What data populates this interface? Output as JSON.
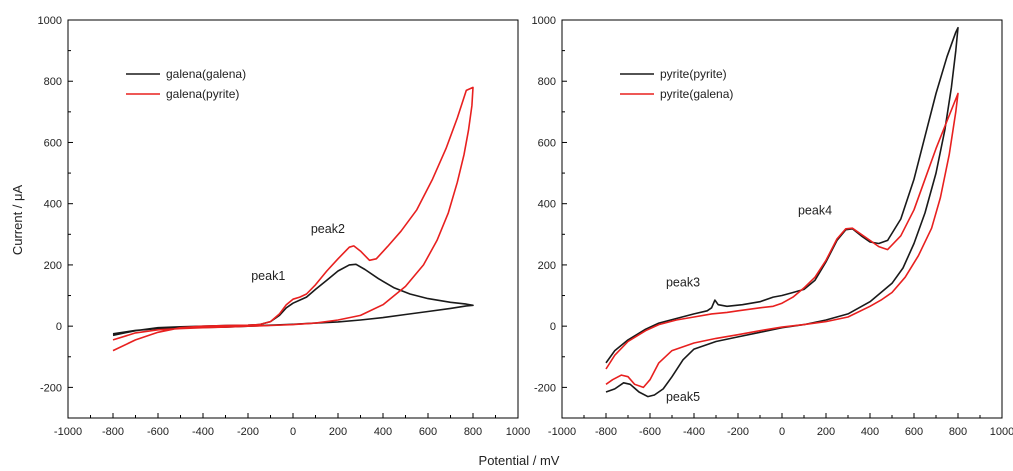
{
  "figure": {
    "shared_xlabel": "Potential / mV",
    "ylabel": "Current / μA"
  },
  "chart_data": [
    {
      "type": "line",
      "xlabel": "",
      "ylabel": "Current / μA",
      "xlim": [
        -1000,
        1000
      ],
      "ylim": [
        -300,
        1000
      ],
      "xticks": [
        -1000,
        -800,
        -600,
        -400,
        -200,
        0,
        200,
        400,
        600,
        800,
        1000
      ],
      "yticks": [
        -200,
        0,
        200,
        400,
        600,
        800,
        1000
      ],
      "grid": false,
      "legend_position": "upper-left",
      "series": [
        {
          "name": "galena(galena)",
          "color": "#1a1a1a",
          "points": [
            [
              -800,
              -30
            ],
            [
              -700,
              -15
            ],
            [
              -600,
              -5
            ],
            [
              -500,
              -2
            ],
            [
              -400,
              0
            ],
            [
              -300,
              2
            ],
            [
              -200,
              3
            ],
            [
              -150,
              5
            ],
            [
              -100,
              15
            ],
            [
              -60,
              35
            ],
            [
              -30,
              60
            ],
            [
              0,
              75
            ],
            [
              30,
              85
            ],
            [
              60,
              95
            ],
            [
              100,
              120
            ],
            [
              150,
              150
            ],
            [
              200,
              180
            ],
            [
              250,
              200
            ],
            [
              280,
              202
            ],
            [
              320,
              185
            ],
            [
              380,
              155
            ],
            [
              450,
              125
            ],
            [
              520,
              105
            ],
            [
              600,
              90
            ],
            [
              700,
              78
            ],
            [
              770,
              72
            ],
            [
              800,
              68
            ],
            [
              770,
              66
            ],
            [
              700,
              58
            ],
            [
              600,
              48
            ],
            [
              500,
              38
            ],
            [
              400,
              28
            ],
            [
              300,
              20
            ],
            [
              200,
              14
            ],
            [
              100,
              10
            ],
            [
              0,
              6
            ],
            [
              -100,
              3
            ],
            [
              -200,
              0
            ],
            [
              -300,
              -3
            ],
            [
              -400,
              -4
            ],
            [
              -500,
              -6
            ],
            [
              -600,
              -8
            ],
            [
              -700,
              -14
            ],
            [
              -800,
              -25
            ]
          ]
        },
        {
          "name": "galena(pyrite)",
          "color": "#e8201f",
          "points": [
            [
              -800,
              -80
            ],
            [
              -700,
              -45
            ],
            [
              -600,
              -20
            ],
            [
              -500,
              -5
            ],
            [
              -400,
              0
            ],
            [
              -300,
              2
            ],
            [
              -200,
              3
            ],
            [
              -150,
              5
            ],
            [
              -100,
              15
            ],
            [
              -60,
              40
            ],
            [
              -30,
              70
            ],
            [
              0,
              88
            ],
            [
              30,
              95
            ],
            [
              60,
              105
            ],
            [
              100,
              135
            ],
            [
              150,
              180
            ],
            [
              200,
              220
            ],
            [
              250,
              258
            ],
            [
              270,
              262
            ],
            [
              300,
              245
            ],
            [
              340,
              215
            ],
            [
              370,
              220
            ],
            [
              420,
              260
            ],
            [
              480,
              310
            ],
            [
              550,
              380
            ],
            [
              620,
              480
            ],
            [
              680,
              580
            ],
            [
              730,
              680
            ],
            [
              770,
              770
            ],
            [
              800,
              780
            ],
            [
              795,
              720
            ],
            [
              780,
              640
            ],
            [
              760,
              560
            ],
            [
              730,
              470
            ],
            [
              690,
              370
            ],
            [
              640,
              280
            ],
            [
              580,
              200
            ],
            [
              500,
              130
            ],
            [
              400,
              70
            ],
            [
              300,
              35
            ],
            [
              200,
              20
            ],
            [
              100,
              10
            ],
            [
              0,
              5
            ],
            [
              -100,
              2
            ],
            [
              -200,
              0
            ],
            [
              -300,
              -3
            ],
            [
              -400,
              -5
            ],
            [
              -500,
              -8
            ],
            [
              -600,
              -12
            ],
            [
              -700,
              -22
            ],
            [
              -800,
              -45
            ]
          ]
        }
      ],
      "annotations": [
        {
          "text": "peak1",
          "x": -110,
          "y": 150
        },
        {
          "text": "peak2",
          "x": 155,
          "y": 305
        }
      ]
    },
    {
      "type": "line",
      "xlabel": "",
      "ylabel": "",
      "xlim": [
        -1000,
        1000
      ],
      "ylim": [
        -300,
        1000
      ],
      "xticks": [
        -1000,
        -800,
        -600,
        -400,
        -200,
        0,
        200,
        400,
        600,
        800,
        1000
      ],
      "yticks": [
        -200,
        0,
        200,
        400,
        600,
        800,
        1000
      ],
      "grid": false,
      "legend_position": "upper-left",
      "series": [
        {
          "name": "pyrite(pyrite)",
          "color": "#1a1a1a",
          "points": [
            [
              -800,
              -120
            ],
            [
              -760,
              -80
            ],
            [
              -700,
              -45
            ],
            [
              -620,
              -10
            ],
            [
              -560,
              10
            ],
            [
              -480,
              25
            ],
            [
              -400,
              40
            ],
            [
              -340,
              50
            ],
            [
              -320,
              60
            ],
            [
              -305,
              85
            ],
            [
              -290,
              70
            ],
            [
              -250,
              65
            ],
            [
              -180,
              70
            ],
            [
              -100,
              80
            ],
            [
              -40,
              95
            ],
            [
              0,
              100
            ],
            [
              50,
              110
            ],
            [
              100,
              120
            ],
            [
              150,
              150
            ],
            [
              200,
              210
            ],
            [
              250,
              280
            ],
            [
              290,
              315
            ],
            [
              320,
              318
            ],
            [
              360,
              295
            ],
            [
              400,
              275
            ],
            [
              440,
              270
            ],
            [
              480,
              280
            ],
            [
              540,
              350
            ],
            [
              600,
              480
            ],
            [
              650,
              620
            ],
            [
              700,
              760
            ],
            [
              750,
              880
            ],
            [
              790,
              960
            ],
            [
              800,
              975
            ],
            [
              790,
              900
            ],
            [
              770,
              780
            ],
            [
              740,
              640
            ],
            [
              700,
              500
            ],
            [
              650,
              370
            ],
            [
              600,
              270
            ],
            [
              550,
              190
            ],
            [
              500,
              140
            ],
            [
              450,
              110
            ],
            [
              400,
              80
            ],
            [
              300,
              40
            ],
            [
              200,
              20
            ],
            [
              100,
              5
            ],
            [
              0,
              -5
            ],
            [
              -100,
              -20
            ],
            [
              -200,
              -35
            ],
            [
              -300,
              -50
            ],
            [
              -400,
              -75
            ],
            [
              -450,
              -110
            ],
            [
              -500,
              -165
            ],
            [
              -540,
              -205
            ],
            [
              -580,
              -225
            ],
            [
              -610,
              -230
            ],
            [
              -650,
              -215
            ],
            [
              -690,
              -190
            ],
            [
              -720,
              -185
            ],
            [
              -760,
              -205
            ],
            [
              -800,
              -215
            ]
          ]
        },
        {
          "name": "pyrite(galena)",
          "color": "#e8201f",
          "points": [
            [
              -800,
              -140
            ],
            [
              -760,
              -95
            ],
            [
              -700,
              -50
            ],
            [
              -620,
              -15
            ],
            [
              -560,
              5
            ],
            [
              -480,
              20
            ],
            [
              -400,
              30
            ],
            [
              -320,
              40
            ],
            [
              -250,
              45
            ],
            [
              -200,
              50
            ],
            [
              -150,
              55
            ],
            [
              -100,
              60
            ],
            [
              -40,
              65
            ],
            [
              0,
              75
            ],
            [
              50,
              95
            ],
            [
              100,
              125
            ],
            [
              150,
              160
            ],
            [
              200,
              215
            ],
            [
              250,
              285
            ],
            [
              290,
              318
            ],
            [
              320,
              320
            ],
            [
              360,
              300
            ],
            [
              400,
              280
            ],
            [
              440,
              260
            ],
            [
              480,
              250
            ],
            [
              540,
              295
            ],
            [
              600,
              380
            ],
            [
              650,
              480
            ],
            [
              700,
              580
            ],
            [
              750,
              670
            ],
            [
              800,
              760
            ],
            [
              790,
              700
            ],
            [
              760,
              560
            ],
            [
              720,
              420
            ],
            [
              680,
              320
            ],
            [
              620,
              230
            ],
            [
              560,
              160
            ],
            [
              500,
              110
            ],
            [
              450,
              85
            ],
            [
              400,
              65
            ],
            [
              300,
              30
            ],
            [
              200,
              15
            ],
            [
              100,
              5
            ],
            [
              0,
              -3
            ],
            [
              -100,
              -15
            ],
            [
              -200,
              -28
            ],
            [
              -300,
              -40
            ],
            [
              -400,
              -55
            ],
            [
              -500,
              -80
            ],
            [
              -560,
              -120
            ],
            [
              -600,
              -175
            ],
            [
              -630,
              -200
            ],
            [
              -670,
              -190
            ],
            [
              -700,
              -165
            ],
            [
              -730,
              -160
            ],
            [
              -770,
              -175
            ],
            [
              -800,
              -190
            ]
          ]
        }
      ],
      "annotations": [
        {
          "text": "peak3",
          "x": -450,
          "y": 130
        },
        {
          "text": "peak4",
          "x": 150,
          "y": 365
        },
        {
          "text": "peak5",
          "x": -450,
          "y": -245
        }
      ]
    }
  ]
}
